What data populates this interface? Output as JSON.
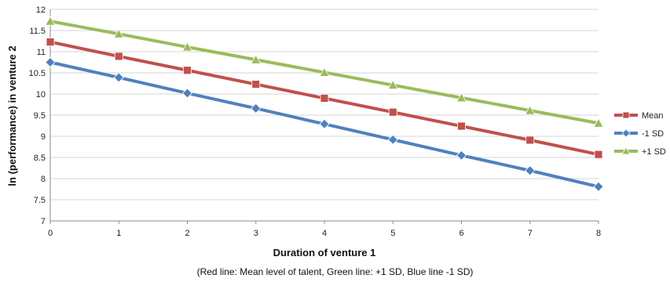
{
  "caption": "(Red line: Mean level of talent, Green line: +1 SD, Blue line -1 SD)",
  "chart_data": {
    "type": "line",
    "xlabel": "Duration of venture 1",
    "ylabel": "ln (performance) in venture 2",
    "x": [
      0,
      1,
      2,
      3,
      4,
      5,
      6,
      7,
      8
    ],
    "xlim": [
      0,
      8
    ],
    "ylim": [
      7,
      12
    ],
    "yticks": [
      7,
      7.5,
      8,
      8.5,
      9,
      9.5,
      10,
      10.5,
      11,
      11.5,
      12
    ],
    "grid": "horizontal",
    "legend_position": "right",
    "series": [
      {
        "name": "Mean",
        "color": "#c0504d",
        "marker": "square",
        "values": [
          11.23,
          10.89,
          10.56,
          10.23,
          9.9,
          9.57,
          9.24,
          8.91,
          8.57
        ]
      },
      {
        "name": "-1 SD",
        "color": "#4f81bd",
        "marker": "diamond",
        "values": [
          10.75,
          10.39,
          10.02,
          9.66,
          9.29,
          8.92,
          8.55,
          8.19,
          7.81
        ]
      },
      {
        "name": "+1 SD",
        "color": "#9bbb59",
        "marker": "triangle",
        "values": [
          11.72,
          11.42,
          11.11,
          10.81,
          10.51,
          10.21,
          9.91,
          9.61,
          9.31
        ]
      }
    ]
  }
}
